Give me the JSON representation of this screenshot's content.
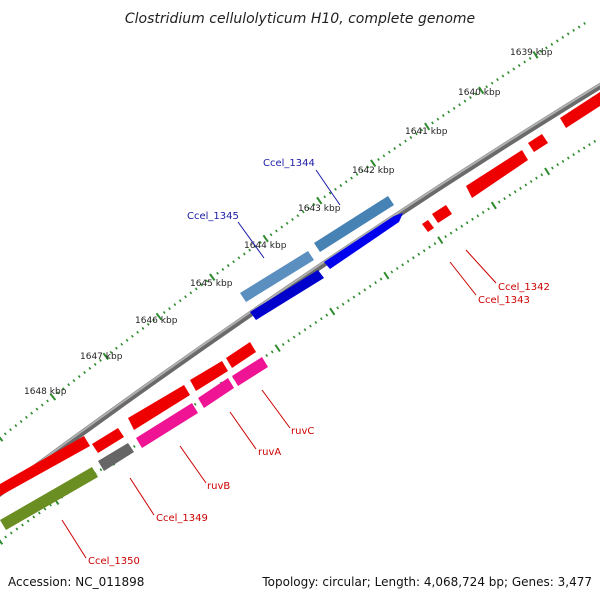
{
  "title": "Clostridium cellulolyticum H10, complete genome",
  "ticks": [
    "1639 kbp",
    "1640 kbp",
    "1641 kbp",
    "1642 kbp",
    "1643 kbp",
    "1644 kbp",
    "1645 kbp",
    "1646 kbp",
    "1647 kbp",
    "1648 kbp"
  ],
  "genes_upper": [
    "Ccel_1344",
    "Ccel_1345"
  ],
  "genes_lower": [
    "Ccel_1342",
    "Ccel_1343",
    "ruvC",
    "ruvA",
    "ruvB",
    "Ccel_1349",
    "Ccel_1350"
  ],
  "footer": {
    "accession": "Accession: NC_011898",
    "topology": "Topology: circular; Length: 4,068,724 bp; Genes: 3,477"
  },
  "colors": {
    "backbone": "#808080",
    "tick": "#2e8b2e",
    "forward_dark": "#0000ee",
    "forward_light": "#4682b4",
    "reverse_red": "#ee0000",
    "reverse_pink": "#ee1493",
    "gray_gene": "#666666",
    "olive_gene": "#6b8e23",
    "label_blue": "#1a1aa6",
    "label_red": "#cc0000"
  }
}
